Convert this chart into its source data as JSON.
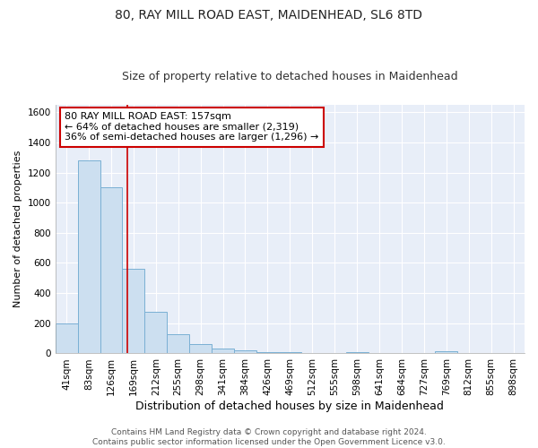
{
  "title": "80, RAY MILL ROAD EAST, MAIDENHEAD, SL6 8TD",
  "subtitle": "Size of property relative to detached houses in Maidenhead",
  "xlabel": "Distribution of detached houses by size in Maidenhead",
  "ylabel": "Number of detached properties",
  "bar_labels": [
    "41sqm",
    "83sqm",
    "126sqm",
    "169sqm",
    "212sqm",
    "255sqm",
    "298sqm",
    "341sqm",
    "384sqm",
    "426sqm",
    "469sqm",
    "512sqm",
    "555sqm",
    "598sqm",
    "641sqm",
    "684sqm",
    "727sqm",
    "769sqm",
    "812sqm",
    "855sqm",
    "898sqm"
  ],
  "bar_values": [
    200,
    1280,
    1100,
    560,
    275,
    130,
    65,
    30,
    20,
    8,
    8,
    5,
    5,
    8,
    4,
    0,
    0,
    15,
    0,
    0,
    0
  ],
  "bar_color": "#ccdff0",
  "bar_edge_color": "#7ab0d4",
  "background_color": "#e8eef8",
  "grid_color": "#ffffff",
  "fig_background": "#ffffff",
  "red_line_x": 2.72,
  "ylim": [
    0,
    1650
  ],
  "yticks": [
    0,
    200,
    400,
    600,
    800,
    1000,
    1200,
    1400,
    1600
  ],
  "annotation_text": "80 RAY MILL ROAD EAST: 157sqm\n← 64% of detached houses are smaller (2,319)\n36% of semi-detached houses are larger (1,296) →",
  "annotation_box_color": "#ffffff",
  "annotation_box_edge": "#cc0000",
  "footer_text": "Contains HM Land Registry data © Crown copyright and database right 2024.\nContains public sector information licensed under the Open Government Licence v3.0.",
  "title_fontsize": 10,
  "subtitle_fontsize": 9,
  "xlabel_fontsize": 9,
  "ylabel_fontsize": 8,
  "tick_fontsize": 7.5,
  "annotation_fontsize": 8,
  "footer_fontsize": 6.5
}
